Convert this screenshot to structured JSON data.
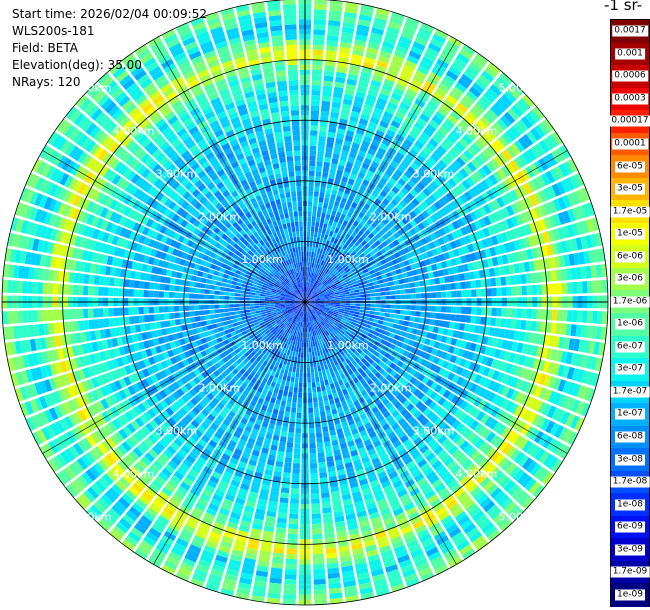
{
  "info": {
    "start_time": "Start time: 2026/02/04 00:09:52",
    "instrument": "WLS200s-181",
    "field": "Field: BETA",
    "elevation": "Elevation(deg): 35.00",
    "nrays": "NRays: 120"
  },
  "colorbar": {
    "title": "-1 sr-",
    "tick_labels": [
      "0.0017",
      "0.001",
      "0.0006",
      "0.0003",
      "0.00017",
      "0.0001",
      "6e-05",
      "3e-05",
      "1.7e-05",
      "1e-05",
      "6e-06",
      "3e-06",
      "1.7e-06",
      "1e-06",
      "6e-07",
      "3e-07",
      "1.7e-07",
      "1e-07",
      "6e-08",
      "3e-08",
      "1.7e-08",
      "1e-08",
      "6e-09",
      "3e-09",
      "1.7e-09",
      "1e-09"
    ],
    "colors": [
      "#7f0000",
      "#a40000",
      "#c80000",
      "#ee0000",
      "#ff1e00",
      "#ff5a00",
      "#ff8a00",
      "#ffb400",
      "#ffe000",
      "#f4ff00",
      "#d4ff1c",
      "#a4ff4c",
      "#7cff7a",
      "#52ffa4",
      "#2cffcc",
      "#0cf4ec",
      "#00d4ff",
      "#00b0ff",
      "#0090ff",
      "#0070ff",
      "#0050ff",
      "#0030ff",
      "#0010f4",
      "#0000d0",
      "#0000a8",
      "#000080"
    ]
  },
  "chart_data": {
    "type": "heatmap",
    "subtype": "polar-ppi",
    "nrays": 120,
    "range_ring_labels_km": [
      "1.00km",
      "2.00km",
      "3.00km",
      "4.00km",
      "5.00km"
    ],
    "range_rings_km": [
      1,
      2,
      3,
      4,
      5
    ],
    "max_range_km": 5.0,
    "grid": true,
    "radial_profile": [
      {
        "range_km": 0.0,
        "value": "1e-08"
      },
      {
        "range_km": 1.0,
        "value": "6e-08"
      },
      {
        "range_km": 2.0,
        "value": "1e-07"
      },
      {
        "range_km": 3.0,
        "value": "1.7e-07"
      },
      {
        "range_km": 3.8,
        "value": "6e-07"
      },
      {
        "range_km": 4.1,
        "value": "1e-05"
      },
      {
        "range_km": 4.5,
        "value": "1.7e-07"
      },
      {
        "range_km": 5.0,
        "value": "1.7e-06"
      }
    ]
  }
}
